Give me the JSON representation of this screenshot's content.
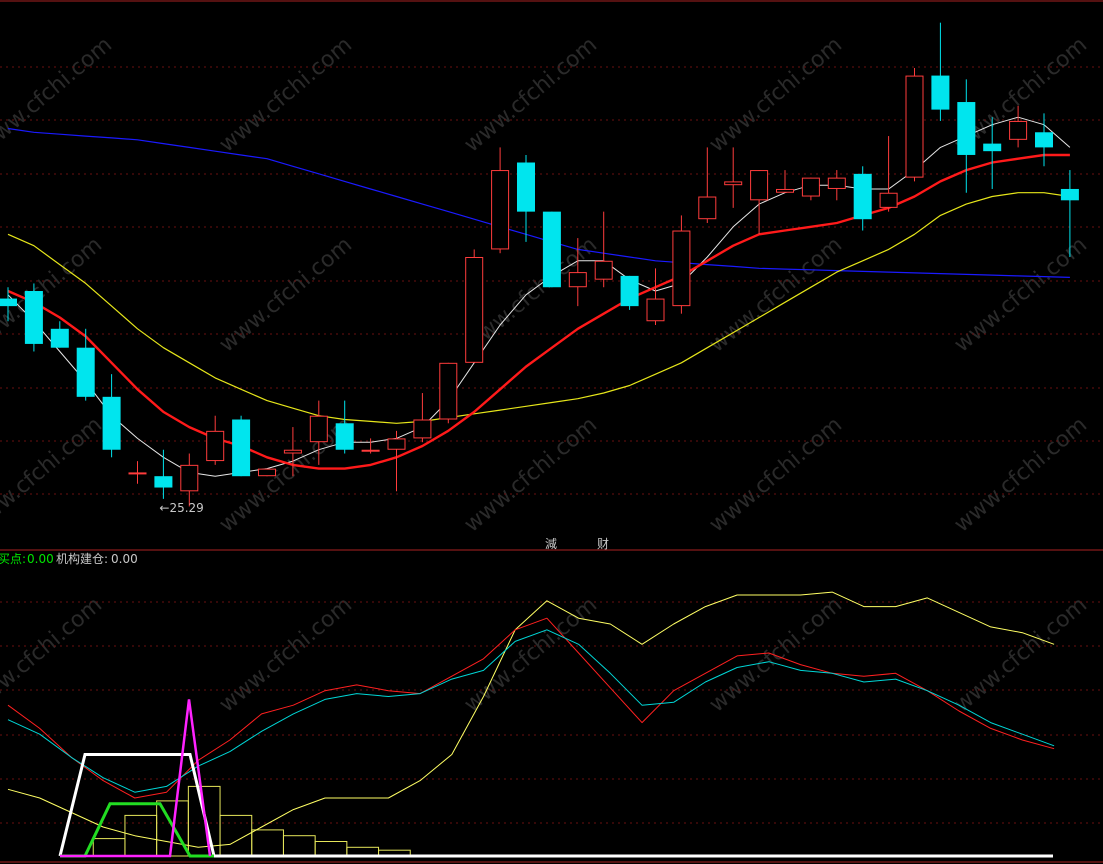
{
  "chart_data": [
    {
      "type": "candlestick",
      "title": "",
      "annotations": {
        "low_marker": "←25.29",
        "bottom_markers": [
          "減",
          "财"
        ]
      },
      "colors": {
        "up": "#ff3c3c",
        "down": "#00e5ee",
        "ma_short": "#e6e6e6",
        "ma_mid": "#ff1a1a",
        "ma_long": "#e6e61a",
        "ma_vlong": "#1a1aff"
      },
      "ylim": [
        24,
        38.5
      ],
      "candles": [
        {
          "o": 30.6,
          "h": 30.9,
          "l": 30.0,
          "c": 30.4
        },
        {
          "o": 30.8,
          "h": 31.0,
          "l": 29.2,
          "c": 29.4
        },
        {
          "o": 29.8,
          "h": 30.0,
          "l": 29.3,
          "c": 29.3
        },
        {
          "o": 29.3,
          "h": 29.8,
          "l": 27.9,
          "c": 28.0
        },
        {
          "o": 28.0,
          "h": 28.6,
          "l": 26.4,
          "c": 26.6
        },
        {
          "o": 26.0,
          "h": 26.3,
          "l": 25.7,
          "c": 26.0
        },
        {
          "o": 25.9,
          "h": 26.6,
          "l": 25.3,
          "c": 25.6
        },
        {
          "o": 25.5,
          "h": 26.5,
          "l": 25.1,
          "c": 26.2
        },
        {
          "o": 26.3,
          "h": 27.5,
          "l": 26.2,
          "c": 27.1
        },
        {
          "o": 27.4,
          "h": 27.5,
          "l": 25.9,
          "c": 25.9
        },
        {
          "o": 25.9,
          "h": 26.1,
          "l": 25.9,
          "c": 26.1
        },
        {
          "o": 26.5,
          "h": 27.2,
          "l": 25.9,
          "c": 26.6
        },
        {
          "o": 26.8,
          "h": 27.9,
          "l": 26.2,
          "c": 27.5
        },
        {
          "o": 27.3,
          "h": 27.9,
          "l": 26.5,
          "c": 26.6
        },
        {
          "o": 26.6,
          "h": 26.9,
          "l": 26.5,
          "c": 26.6
        },
        {
          "o": 26.6,
          "h": 27.1,
          "l": 25.5,
          "c": 26.9
        },
        {
          "o": 26.9,
          "h": 28.1,
          "l": 26.8,
          "c": 27.4
        },
        {
          "o": 27.4,
          "h": 28.9,
          "l": 27.3,
          "c": 28.9
        },
        {
          "o": 28.9,
          "h": 31.9,
          "l": 28.9,
          "c": 31.7
        },
        {
          "o": 31.9,
          "h": 34.6,
          "l": 31.8,
          "c": 34.0
        },
        {
          "o": 34.2,
          "h": 34.4,
          "l": 32.1,
          "c": 32.9
        },
        {
          "o": 32.9,
          "h": 32.9,
          "l": 30.9,
          "c": 30.9
        },
        {
          "o": 30.9,
          "h": 32.2,
          "l": 30.4,
          "c": 31.3
        },
        {
          "o": 31.1,
          "h": 32.9,
          "l": 30.9,
          "c": 31.6
        },
        {
          "o": 31.2,
          "h": 31.2,
          "l": 30.3,
          "c": 30.4
        },
        {
          "o": 30.0,
          "h": 31.4,
          "l": 29.9,
          "c": 30.6
        },
        {
          "o": 30.4,
          "h": 32.8,
          "l": 30.2,
          "c": 32.4
        },
        {
          "o": 32.7,
          "h": 34.6,
          "l": 32.6,
          "c": 33.3
        },
        {
          "o": 33.6,
          "h": 34.6,
          "l": 33.0,
          "c": 33.7
        },
        {
          "o": 33.2,
          "h": 34.0,
          "l": 32.3,
          "c": 34.0
        },
        {
          "o": 33.4,
          "h": 34.0,
          "l": 33.4,
          "c": 33.5
        },
        {
          "o": 33.3,
          "h": 33.8,
          "l": 33.2,
          "c": 33.8
        },
        {
          "o": 33.5,
          "h": 34.0,
          "l": 33.2,
          "c": 33.8
        },
        {
          "o": 33.9,
          "h": 34.1,
          "l": 32.4,
          "c": 32.7
        },
        {
          "o": 33.0,
          "h": 34.9,
          "l": 32.9,
          "c": 33.4
        },
        {
          "o": 33.8,
          "h": 36.7,
          "l": 33.7,
          "c": 36.5
        },
        {
          "o": 36.5,
          "h": 37.9,
          "l": 35.3,
          "c": 35.6
        },
        {
          "o": 35.8,
          "h": 36.4,
          "l": 33.4,
          "c": 34.4
        },
        {
          "o": 34.7,
          "h": 35.4,
          "l": 33.5,
          "c": 34.5
        },
        {
          "o": 34.8,
          "h": 35.7,
          "l": 34.6,
          "c": 35.3
        },
        {
          "o": 35.0,
          "h": 35.5,
          "l": 34.1,
          "c": 34.6
        },
        {
          "o": 33.5,
          "h": 34.0,
          "l": 31.7,
          "c": 33.2
        }
      ],
      "ma_short": [
        30.7,
        30.0,
        29.2,
        28.4,
        27.5,
        26.9,
        26.4,
        26.0,
        25.9,
        26.0,
        26.1,
        26.3,
        26.6,
        26.8,
        26.8,
        26.9,
        27.2,
        27.9,
        28.9,
        29.9,
        30.7,
        31.2,
        31.6,
        31.6,
        31.1,
        30.8,
        31.0,
        31.7,
        32.5,
        33.1,
        33.4,
        33.6,
        33.6,
        33.5,
        33.5,
        34.0,
        34.6,
        34.9,
        35.2,
        35.4,
        35.2,
        34.6
      ],
      "ma_mid": [
        30.8,
        30.5,
        30.1,
        29.6,
        28.9,
        28.2,
        27.6,
        27.2,
        26.9,
        26.7,
        26.4,
        26.2,
        26.1,
        26.1,
        26.2,
        26.4,
        26.7,
        27.1,
        27.6,
        28.2,
        28.8,
        29.3,
        29.8,
        30.2,
        30.6,
        30.9,
        31.2,
        31.6,
        32.0,
        32.3,
        32.4,
        32.5,
        32.6,
        32.8,
        33.0,
        33.3,
        33.7,
        34.0,
        34.2,
        34.3,
        34.4,
        34.4
      ],
      "ma_long": [
        32.3,
        32.0,
        31.5,
        31.0,
        30.4,
        29.8,
        29.3,
        28.9,
        28.5,
        28.2,
        27.9,
        27.7,
        27.5,
        27.4,
        27.35,
        27.3,
        27.35,
        27.45,
        27.55,
        27.65,
        27.75,
        27.85,
        27.95,
        28.1,
        28.3,
        28.6,
        28.9,
        29.3,
        29.7,
        30.1,
        30.5,
        30.9,
        31.3,
        31.6,
        31.9,
        32.3,
        32.8,
        33.1,
        33.3,
        33.4,
        33.4,
        33.3
      ],
      "ma_vlong": [
        35.1,
        35.0,
        34.95,
        34.9,
        34.85,
        34.8,
        34.7,
        34.6,
        34.5,
        34.4,
        34.3,
        34.1,
        33.9,
        33.7,
        33.5,
        33.3,
        33.1,
        32.9,
        32.7,
        32.5,
        32.3,
        32.1,
        31.9,
        31.8,
        31.7,
        31.6,
        31.55,
        31.5,
        31.45,
        31.4,
        31.38,
        31.36,
        31.34,
        31.32,
        31.3,
        31.28,
        31.26,
        31.24,
        31.22,
        31.2,
        31.18,
        31.16
      ]
    },
    {
      "type": "line",
      "title": "",
      "legend": [
        {
          "label": "买点:",
          "value": "0.00",
          "color": "#00e600"
        },
        {
          "label": "机构建仓:",
          "value": "0.00",
          "color": "#c8c8c8"
        }
      ],
      "ylim": [
        0,
        100
      ],
      "series": [
        {
          "color": "#ffff64",
          "values": [
            23,
            20,
            15,
            10,
            7,
            5,
            3,
            4,
            10,
            16,
            20,
            20,
            20,
            26,
            35,
            55,
            78,
            88,
            82,
            80,
            73,
            80,
            86,
            90,
            90,
            90,
            91,
            86,
            86,
            89,
            84,
            79,
            77,
            73
          ]
        },
        {
          "color": "#ff2020",
          "values": [
            52,
            44,
            34,
            26,
            20,
            22,
            33,
            40,
            49,
            52,
            57,
            59,
            57,
            56,
            62,
            68,
            78,
            82,
            70,
            58,
            46,
            57,
            63,
            69,
            70,
            66,
            63,
            62,
            63,
            57,
            50,
            44,
            40,
            37
          ]
        },
        {
          "color": "#00d6d6",
          "values": [
            47,
            42,
            34,
            27,
            22,
            24,
            31,
            36,
            43,
            49,
            54,
            56,
            55,
            56,
            61,
            64,
            74,
            78,
            73,
            63,
            52,
            53,
            60,
            65,
            67,
            64,
            63,
            60,
            61,
            57,
            52,
            46,
            42,
            38
          ]
        }
      ],
      "signals": {
        "white_plateau": [
          0,
          0,
          0,
          35,
          35,
          35,
          35,
          35,
          35,
          0,
          0,
          0,
          0,
          0,
          0,
          0,
          0,
          0,
          0,
          0,
          0,
          0,
          0,
          0,
          0,
          0,
          0,
          0,
          0,
          0,
          0,
          0,
          0,
          0
        ],
        "green_plateau": [
          0,
          0,
          0,
          0,
          0,
          18,
          18,
          18,
          0,
          0,
          0,
          0,
          0,
          0,
          0,
          0,
          0,
          0,
          0,
          0,
          0,
          0,
          0,
          0,
          0,
          0,
          0,
          0,
          0,
          0,
          0,
          0,
          0,
          0
        ],
        "magenta_spike": [
          0,
          0,
          0,
          0,
          0,
          0,
          0,
          54,
          0,
          0,
          0,
          0,
          0,
          0,
          0,
          0,
          0,
          0,
          0,
          0,
          0,
          0,
          0,
          0,
          0,
          0,
          0,
          0,
          0,
          0,
          0,
          0,
          0,
          0
        ],
        "yellow_steps": [
          0,
          0,
          0,
          6,
          14,
          19,
          24,
          14,
          9,
          7,
          5,
          3,
          2,
          0,
          0,
          0,
          0,
          0,
          0,
          0,
          0,
          0,
          0,
          0,
          0,
          0,
          0,
          0,
          0,
          0,
          0,
          0,
          0,
          0
        ]
      }
    }
  ],
  "watermark": "www.cfchi.com"
}
